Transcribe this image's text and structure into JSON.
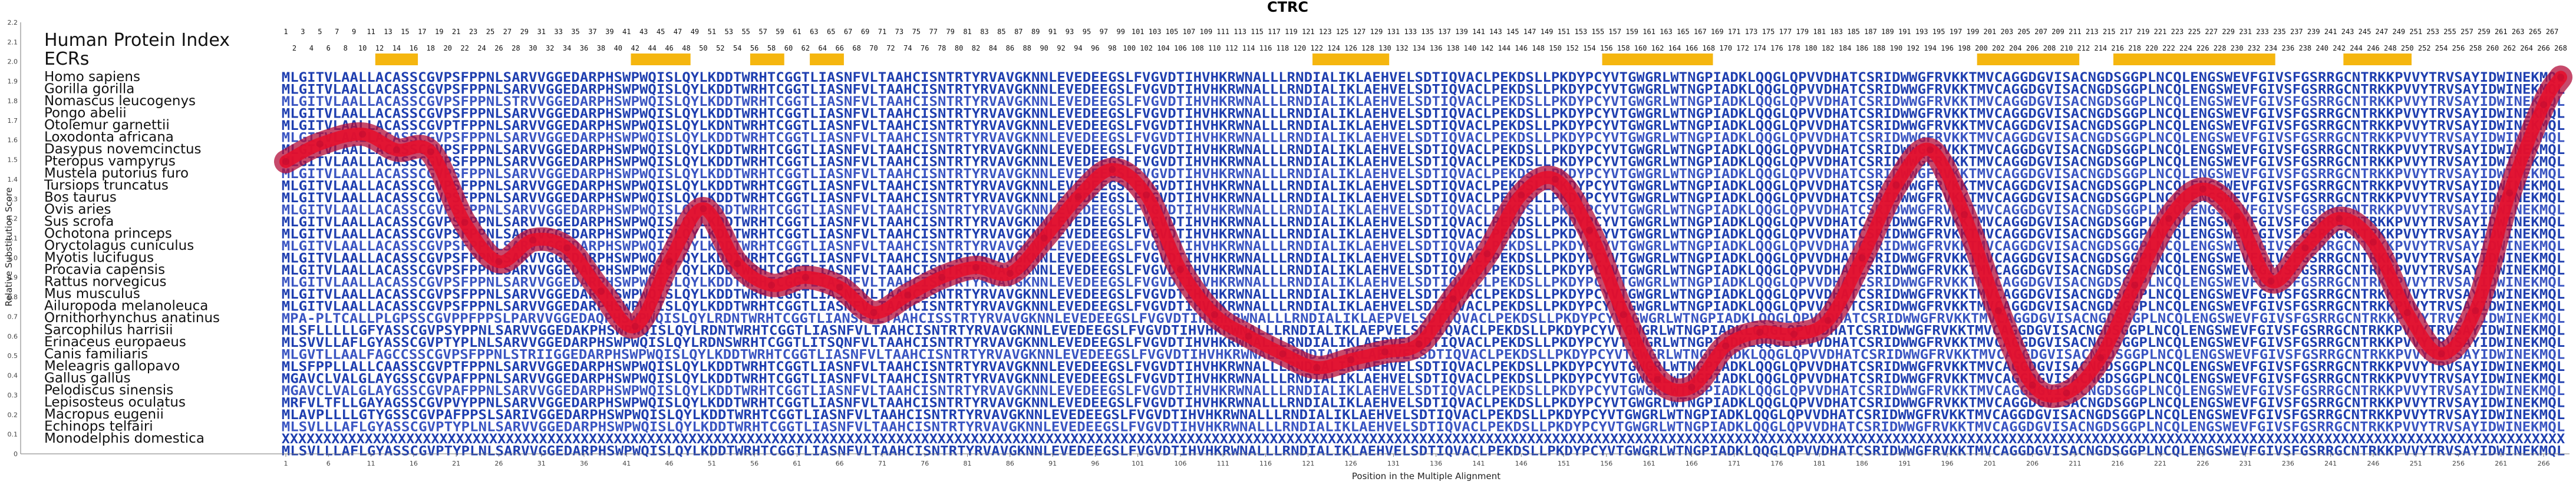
{
  "chart_data": {
    "type": "line",
    "title": "CTRC",
    "xlabel": "Position in the Multiple Alignment",
    "ylabel": "Relative Substitution Score",
    "ylim": [
      0,
      2.2
    ],
    "yticks": [
      "0",
      "0.1",
      "0.2",
      "0.3",
      "0.4",
      "0.5",
      "0.6",
      "0.7",
      "0.8",
      "0.9",
      "1.0",
      "1.1",
      "1.2",
      "1.3",
      "1.4",
      "1.5",
      "1.6",
      "1.7",
      "1.8",
      "1.9",
      "2.0",
      "2.1",
      "2.2"
    ],
    "xrange": [
      1,
      268
    ],
    "xticks": [
      1,
      6,
      11,
      16,
      21,
      26,
      31,
      36,
      41,
      46,
      51,
      56,
      61,
      66,
      71,
      76,
      81,
      86,
      91,
      96,
      101,
      106,
      111,
      116,
      121,
      126,
      131,
      136,
      141,
      146,
      151,
      156,
      161,
      166,
      171,
      176,
      181,
      186,
      191,
      196,
      201,
      206,
      211,
      216,
      221,
      226,
      231,
      236,
      241,
      246,
      251,
      256,
      261,
      266
    ],
    "header_rows": [
      "Human Protein Index",
      "ECRs"
    ],
    "ecr_regions": [
      [
        12,
        16
      ],
      [
        42,
        48
      ],
      [
        56,
        59
      ],
      [
        63,
        66
      ],
      [
        122,
        130
      ],
      [
        156,
        168
      ],
      [
        200,
        211
      ],
      [
        216,
        234
      ],
      [
        243,
        250
      ]
    ],
    "species": [
      "Homo sapiens",
      "Gorilla gorilla",
      "Nomascus leucogenys",
      "Pongo abelii",
      "Otolemur garnettii",
      "Loxodonta africana",
      "Dasypus novemcinctus",
      "Pteropus vampyrus",
      "Mustela putorius furo",
      "Tursiops truncatus",
      "Bos taurus",
      "Ovis aries",
      "Sus scrofa",
      "Ochotona princeps",
      "Oryctolagus cuniculus",
      "Myotis lucifugus",
      "Procavia capensis",
      "Rattus norvegicus",
      "Mus musculus",
      "Ailuropoda melanoleuca",
      "Ornithorhynchus anatinus",
      "Sarcophilus harrisii",
      "Erinaceus europaeus",
      "Canis familiaris",
      "Meleagris gallopavo",
      "Gallus gallus",
      "Pelodiscus sinensis",
      "Lepisosteus oculatus",
      "Macropus eugenii",
      "Echinops telfairi",
      "Monodelphis domestica"
    ],
    "sequences": [
      "MLGITVLAALLACASSCGVPSFPPNLSARVVGGEDARPHSWPWQISLQYLKDDTWRHTCGGTLIASNFVLTAAHCISNTRTYRVAVGKNNLEVEDEEGSLFVGVDTIHVHKRWNALLLRNDIALIKLAEHVELSDTIQVACLPEKDSLLPKDYPCYVTGWGRLWTNGPIADKLQQGLQPVVDHATCSRIDWWGFRVKKTMVCAGGDGVISACNGDSGGPLNCQLENGSWEVFGIVSFGSRRGCNTRKKPVVYTRVSAYIDWINEKMQL",
      "MLGITVLAALLACASSCGVPSFPPNLSARVVGGEDARPHSWPWQISLQYLKDDTWRHTCGGTLIASNFVLTAAHCISNTRTYRVAVGKNNLEVEDEEGSLFVGVDTIHVHKRWNALLLRNDIALIKLAEHVELSDTIQVACLPEKDSLLPKDYPCYVTGWGRLWTNGPIADKLQQGLQPVVDHATCSRIDWWGFRVKKTMVCAGGDGVISACNGDSGGPLNCQLENGSWEVFGIVSFGSRRGCNTRKKPVVYTRVSAYIDWINEKMQL",
      "MLGITVLAALLACASSCGVPSFPPNLSTRVVGGEDARPHSWPWQISLQYLKDDTWRHTCGGTLIASNFVLTAAHCISNTRTYRVAVGKNNLEVEDEEGSLFVGVDTIHVHKRWNALLLRNDIALIKLAEHVELSDTIQVACLPEKDSLLPKDYPCYVTGWGRLWTNGPIADKLQQGLQPVVDHATCSRIDWWGFRVKKTMVCAGGDGVISACNGDSGGPLNCQLENGSWEVFGIVSFGSRRGCNTRKKPVVYTRVSAYIDWINEKMQL",
      "MLGITVLAALLACASSCGVPSFPPNLSARVVGGEDARPHSWPWQISLQYLKDDTWRHTCGGTLIASNFVLTAAHCISNTRTYRVAVGKNNLEVEDEEGSLFVGVDTIHVHKRWNALLLRNDIALIKLAEHVELSDTIQVACLPEKDSLLPKDYPCYVTGWGRLWTNGPIADKLQQGLQPVVDHATCSRIDWWGFRVKKTMVCAGGDGVISACNGDSGGPLNCQLENGSWEVFGIVSFGSRRGCNTRKKPVVYTRVSAYIDWINEKMQL",
      "MLGITVLAALLACASSCGVPTFPPNLSARVVGGEDARPHSWPWQISLQYLKDNTWRHTCGGTLIASNFVLTAAHCISNTRTYRVAVGKNNLEVEDEEGSLFVGVDTIHVHKRWNALLLRNDIALIKLAEHVELSDTIQVACLPEKDSLLPKDYPCYVTGWGRLWTNGPIADKLQQGLQPVVDHATCSRIDWWGFRVKKTMVCAGGDGVISACNGDSGGPLNCQLENGSWEVFGIVSFGSRRGCNTRKKPVVYTRVSAYIDWINEKMQL",
      "MLGITVLAALLACASSCGVPSFPPNLSARVVGGEDARPHSWPWQISLQYLKDDTWRHTCGGTLIASNFVLTAAHCISNTRTYRVAVGKNNLEVEDEEGSLFVGVDTIHVHKRWNALLLRNDIALIKLAEHVELSDTIQVACLPEKDSLLPKDYPCYVTGWGRLWTNGPIADKLQQGLQPVVDHATCSRIDWWGFRVKKTMVCAGGDGVISACNGDSGGPLNCQLENGSWEVFGIVSFGSRRGCNTRKKPVVYTRVSAYIDWINEKMQL",
      "MLGITVLAALLACASSCGVPSFPPNLSARVVGGEDARPHSWPWQISLQYLKDDTWRHTCGGTLIASNFVLTAAHCISNTRTYRVAVGKNNLEVEDEEGSLFVGVDTIHVHKRWNALLLRNDIALIKLAEHVELSDTIQVACLPEKDSLLPKDYPCYVTGWGRLWTNGPIADKLQQGLQPVVDHATCSRIDWWGFRVKKTMVCAGGDGVISACNGDSGGPLNCQLENGSWEVFGIVSFGSRRGCNTRKKPVVYTRVSAYIDWINEKMQL",
      "MLGITVLAALLACASSCGVPSFPPNLSARVVGGEDARPHSWPWQISLQYLKDDTWRHTCGGTLIASNFVLTAAHCISNTRTYRVAVGKNNLEVEDEEGSLFVGVDTIHVHKRWNALLLRNDIALIKLAEHVELSDTIQVACLPEKDSLLPKDYPCYVTGWGRLWTNGPIADKLQQGLQPVVDHATCSRIDWWGFRVKKTMVCAGGDGVISACNGDSGGPLNCQLENGSWEVFGIVSFGSRRGCNTRKKPVVYTRVSAYIDWINEKMQL",
      "MLGITVLAALLACASSCGVPSFPPNLSARVVGGEDARPHSWPWQISLQYLKDDTWRHTCGGTLIASNFVLTAAHCISNTRTYRVAVGKNNLEVEDEEGSLFVGVDTIHVHKRWNALLLRNDIALIKLAEHVELSDTIQVACLPEKDSLLPKDYPCYVTGWGRLWTNGPIADKLQQGLQPVVDHATCSRIDWWGFRVKKTMVCAGGDGVISACNGDSGGPLNCQLENGSWEVFGIVSFGSRRGCNTRKKPVVYTRVSAYIDWINEKMQL",
      "MLGITVLAALLACASSCGVPSFPPNLSARVVGGEDARPHSWPWQISLQYLKDDTWRHTCGGTLIASNFVLTAAHCISNTRTYRVAVGKNNLEVEDEEGSLFVGVDTIHVHKRWNALLLRNDIALIKLAEHVELSDTIQVACLPEKDSLLPKDYPCYVTGWGRLWTNGPIADKLQQGLQPVVDHATCSRIDWWGFRVKKTMVCAGGDGVISACNGDSGGPLNCQLENGSWEVFGIVSFGSRRGCNTRKKPVVYTRVSAYIDWINEKMQL",
      "MLGITVLAALLACASSCGVPSFPPNLSARVVGGEDARPHSWPWQISLQYLKDDTWRHTCGGTLIASNFVLTAAHCISNTRTYRVAVGKNNLEVEDEEGSLFVGVDTIHVHKRWNALLLRNDIALIKLAEHVELSDTIQVACLPEKDSLLPKDYPCYVTGWGRLWTNGPIADKLQQGLQPVVDHATCSRIDWWGFRVKKTMVCAGGDGVISACNGDSGGPLNCQLENGSWEVFGIVSFGSRRGCNTRKKPVVYTRVSAYIDWINEKMQL",
      "MLGITVLAALLACASSCGVPSFPPNLSARVVGGEDARPHSWPWQISLQYLKDDTWRHTCGGTLIASNFVLTAAHCISNTRTYRVAVGKNNLEVEDEEGSLFVGVDTIHVHKRWNALLLRNDIALIKLAEHVELSDTIQVACLPEKDSLLPKDYPCYVTGWGRLWTNGPIADKLQQGLQPVVDHATCSRIDWWGFRVKKTMVCAGGDGVISACNGDSGGPLNCQLENGSWEVFGIVSFGSRRGCNTRKKPVVYTRVSAYIDWINEKMQL",
      "MLGITVLAALLACASSCGVPSFPPNLSARVVGGEDARPHSWPWQISLQYLKDDTWRHTCGGTLIASNFVLTAAHCISNTRTYRVAVGKNNLEVEDEEGSLFVGVDTIHVHKRWNALLLRNDIALIKLAEHVELSDTIQVACLPEKDSLLPKDYPCYVTGWGRLWTNGPIADKLQQGLQPVVDHATCSRIDWWGFRVKKTMVCAGGDGVISACNGDSGGPLNCQLENGSWEVFGIVSFGSRRGCNTRKKPVVYTRVSAYIDWINEKMQL",
      "MLGITVLAALLACASSCGVPSFPPNLSARVVGGEDARPHSWPWQISLQYLKDDTWRHTCGGTLIASNFVLTAAHCISNTRTYRVAVGKNNLEVEDEEGSLFVGVDTIHVHKRWNALLLRNDIALIKLAEHVELSDTIQVACLPEKDSLLPKDYPCYVTGWGRLWTNGPIADKLQQGLQPVVDHATCSRIDWWGFRVKKTMVCAGGDGVISACNGDSGGPLNCQLENGSWEVFGIVSFGSRRGCNTRKKPVVYTRVSAYIDWINEKMQL",
      "MLGITVLAALLACASSCGVPSFPPNLSARVVGGEDARPHSWPWQISLQYLKDDTWRHTCGGTLIASNFVLTAAHCISNTRTYRVAVGKNNLEVEDEEGSLFVGVDTIHVHKRWNALLLRNDIALIKLAEHVELSDTIQVACLPEKDSLLPKDYPCYVTGWGRLWTNGPIADKLQQGLQPVVDHATCSRIDWWGFRVKKTMVCAGGDGVISACNGDSGGPLNCQLENGSWEVFGIVSFGSRRGCNTRKKPVVYTRVSAYIDWINEKMQL",
      "MLGITVLAALLACASSCGVPSFPPNLSARVVGGEDARPHSWPWQISLQYLKDDTWRHTCGGTLIASNFVLTAAHCISNTRTYRVAVGKNNLEVEDEEGSLFVGVDTIHVHKRWNALLLRNDIALIKLAEHVELSDTIQVACLPEKDSLLPKDYPCYVTGWGRLWTNGPIADKLQQGLQPVVDHATCSRIDWWGFRVKKTMVCAGGDGVISACNGDSGGPLNCQLENGSWEVFGIVSFGSRRGCNTRKKPVVYTRVSAYIDWINEKMQL",
      "MLGITVLAALLACASSCGVPSFPPNLSARVVGGEDARPHSWPWQISLQYLKDDTWRHTCGGTLIASNFVLTAAHCISNTRTYRVAVGKNNLEVEDEEGSLFVGVDTIHVHKRWNALLLRNDIALIKLAEHVELSDTIQVACLPEKDSLLPKDYPCYVTGWGRLWTNGPIADKLQQGLQPVVDHATCSRIDWWGFRVKKTMVCAGGDGVISACNGDSGGPLNCQLENGSWEVFGIVSFGSRRGCNTRKKPVVYTRVSAYIDWINEKMQL",
      "MLGITVLAALLACASSCGVPSFPPNLSARVVGGEDARPHSWPWQISLQYLKDDTWRHTCGGTLIASNFVLTAAHCISNTRTYRVAVGKNNLEVEDEEGSLFVGVDTIHVHKRWNALLLRNDIALIKLAEHVELSDTIQVACLPEKDSLLPKDYPCYVTGWGRLWTNGPIADKLQQGLQPVVDHATCSRIDWWGFRVKKTMVCAGGDGVISACNGDSGGPLNCQLENGSWEVFGIVSFGSRRGCNTRKKPVVYTRVSAYIDWINEKMQL",
      "MLGITVLAALLACASSCGVPSFPPNLSARVVGGEDARPHSWPWQISLQYLKDDTWRHTCGGTLIASNFVLTAAHCISNTRTYRVAVGKNNLEVEDEEGSLFVGVDTIHVHKRWNALLLRNDIALIKLAEHVELSDTIQVACLPEKDSLLPKDYPCYVTGWGRLWTNGPIADKLQQGLQPVVDHATCSRIDWWGFRVKKTMVCAGGDGVISACNGDSGGPLNCQLENGSWEVFGIVSFGSRRGCNTRKKPVVYTRVSAYIDWINEKMQL",
      "MLGITVLAALLACASSCGVPSFPPNLSARVVGGEDARPHSWPWQISLQYLKDDTWRHTCGGTLIASNFVLTAAHCISNTRTYRVAVGKNNLEVEDEEGSLFVGVDTIHVHKRWNALLLRNDIALIKLAEHVELSDTIQVACLPEKDSLLPKDYPCYVTGWGRLWTNGPIADKLQQGLQPVVDHATCSRIDWWGFRVKKTMVCAGGDGVISACNGDSGGPLNCQLENGSWEVFGIVSFGSRRGCNTRKKPVVYTRVSAYIDWINEKMQL",
      "MPA-PLTCALLPLGPSSCGVPPFPPSLPARVVGGEDAQPHSWPWQISLQYLRDNTWRHTCGGTLIANSFVLTAAHCISSTRTYRVAVGKNNLEVEDEEGSLFVGVDTIHVHKRWNALLLRNDIALIKLAEPVELSDTIQVACLPEKDSLLPKDYPCYVTGWGRLWTNGPIADKLQQGLQPVVDHATCSRIDWWGFRVKKTMVCAGGDGVISACNGDSGGPLNCQLENGSWEVFGIVSFGSRRGCNTRKKPVVYTRVSAYIDWINEKMQL",
      "MLSFLLLLLGFYASSCGVPSYPPNLSARVVGGEDAKPHSWPWQISLQYLRDNTWRHTCGGTLIASNFVLTAAHCISNTRTYRVAVGKNNLEVEDEEGSLFVGVDTIHVHKRWNALLLRNDIALIKLAEPVELSDTIQVACLPEKDSLLPKDYPCYVTGWGRLWTNGPIADKLQQGLQPVVDHATCSRIDWWGFRVKKTMVCAGGDGVISACNGDSGGPLNCQLENGSWEVFGIVSFGSRRGCNTRKKPVVYTRVSAYIDWINEKMQL",
      "MLSVVLLAFLGYASSCGVPTYPLNLSARVVGGEDARPHSWPWQISLQYLRDNSWRHTCGGTLITSQNFVLTAAHCISNTRTYRVAVGKNNLEVEDEEGSLFVGVDTIHVHKRWNALLLRNDIALIKLAEPVELSDTIQVACLPEKDSLLPKDYPCYVTGWGRLWTNGPIADKLQQGLQPVVDHATCSRIDWWGFRVKKTMVCAGGDGVISACNGDSGGPLNCQLENGSWEVFGIVSFGSRRGCNTRKKPVVYTRVSAYIDWINEKMQL",
      "MLGVTLLAALFAGCCSSCGVPSFPPNLSTRIIGGEDARPHSWPWQISLQYLKDDTWRHTCGGTLIASNFVLTAAHCISNTRTYRVAVGKNNLEVEDEEGSLFVGVDTIHVHKRWNALLLRNDIALIKLAEHVELSDTIQVACLPEKDSLLPKDYPCYVTGWGRLWTNGPIADKLQQGLQPVVDHATCSRIDWWGFRVKKTMVCAGGDGVISACNGDSGGPLNCQLENGSWEVFGIVSFGSRRGCNTRKKPVVYTRVSAYIDWINEKMQL",
      "MLSFPPLLALLCAASSCGVPTFPPNLSARVVGGEDARPHSWPWQISLQYLKDDTWRHTCGGTLIASNFVLTAAHCISNTRTYRVAVGKNNLEVEDEEGSLFVGVDTIHVHKRWNALLLRNDIALIKLAEHVELSDTIQVACLPEKDSLLPKDYPCYVTGWGRLWTNGPIADKLQQGLQPVVDHATCSRIDWWGFRVKKTMVCAGGDGVISACNGDSGGPLNCQLENGSWEVFGIVSFGSRRGCNTRKKPVVYTRVSAYIDWINEKMQL",
      "MGAVCLVALGLAYGSSCGVPAFPPNLSARVVGGEDARPHSWPWQISLQYLKDDTWRHTCGGTLIASNFVLTAAHCISNTRTYRVAVGKNNLEVEDEEGSLFVGVDTIHVHKRWNALLLRNDIALIKLAEHVELSDTIQVACLPEKDSLLPKDYPCYVTGWGRLWTNGPIADKLQQGLQPVVDHATCSRIDWWGFRVKKTMVCAGGDGVISACNGDSGGPLNCQLENGSWEVFGIVSFGSRRGCNTRKKPVVYTRVSAYIDWINEKMQL",
      "MGAVCLVALGLAYGSSCGVPAFPPNLSARVVGGEDARPHSWPWQISLQYLKDDTWRHTCGGTLIASNFVLTAAHCISNTRTYRVAVGKNNLEVEDEEGSLFVGVDTIHVHKRWNALLLRNDIALIKLAEHVELSDTIQVACLPEKDSLLPKDYPCYVTGWGRLWTNGPIADKLQQGLQPVVDHATCSRIDWWGFRVKKTMVCAGGDGVISACNGDSGGPLNCQLENGSWEVFGIVSFGSRRGCNTRKKPVVYTRVSAYIDWINEKMQL",
      "MRFVLTFLLGAYAGSSCGVPVYPPNLSARVVGGEDARPHSWPWQISLQYLKDDTWRHTCGGTLIASNFVLTAAHCISNTRTYRVAVGKNNLEVEDEEGSLFVGVDTIHVHKRWNALLLRNDIALIKLAEHVELSDTIQVACLPEKDSLLPKDYPCYVTGWGRLWTNGPIADKLQQGLQPVVDHATCSRIDWWGFRVKKTMVCAGGDGVISACNGDSGGPLNCQLENGSWEVFGIVSFGSRRGCNTRKKPVVYTRVSAYIDWINEKMQL",
      "MLAVPLLLLGTYGSSCGVPAFPPSLSARIVGGEDARPHSWPWQISLQYLKDDTWRHTCGGTLIASNFVLTAAHCISNTRTYRVAVGKNNLEVEDEEGSLFVGVDTIHVHKRWNALLLRNDIALIKLAEHVELSDTIQVACLPEKDSLLPKDYPCYVTGWGRLWTNGPIADKLQQGLQPVVDHATCSRIDWWGFRVKKTMVCAGGDGVISACNGDSGGPLNCQLENGSWEVFGIVSFGSRRGCNTRKKPVVYTRVSAYIDWINEKMQL",
      "MLSVLLLAFLGYASSCGVPTYPLNLSARVVGGEDARPHSWPWQISLQYLKDDTWRHTCGGTLIASNFVLTAAHCISNTRTYRVAVGKNNLEVEDEEGSLFVGVDTIHVHKRWNALLLRNDIALIKLAEHVELSDTIQVACLPEKDSLLPKDYPCYVTGWGRLWTNGPIADKLQQGLQPVVDHATCSRIDWWGFRVKKTMVCAGGDGVISACNGDSGGPLNCQLENGSWEVFGIVSFGSRRGCNTRKKPVVYTRVSAYIDWINEKMQL",
      "XXXXXXXXXXXXXXXXXXXXXXXXXXXXXXXXXXXXXXXXXXXXXXXXXXXXXXXXXXXXXXXXXXXXXXXXXXXXXXXXXXXXXXXXXXXXXXXXXXXXXXXXXXXXXXXXXXXXXXXXXXXXXXXXXXXXXXXXXXXXXXXXXXXXXXXXXXXXXXXXXXXXXXXXXXXXXXXXXXXXXXXXXXXXXXXXXXXXXXXXXXXXXXXXXXXXXXXXXXXXXXXXXXXXXXXXXXXXXXXXXXXXXXXXXXXXXXXXXXXXXXXXXXXXXXXXXXX",
      "MLSVLLLAFLGYASSCGVPTYPLNLSARVVGGEDARPHSWPWQISLQYLKDDTWRHTCGGTLIASNFVLTAAHCISNTRTYRVAVGKNNLEVEDEEGSLFVGVDTIHVHKRWNALLLRNDIALIKLAEHVELSDTIQVACLPEKDSLLPKDYPCYVTGWGRLWTNGPIADKLQQGLQPVVDHATCSRIDWWGFRVKKTMVCAGGDGVISACNGDSGGPLNCQLENGSWEVFGIVSFGSRRGCNTRKKPVVYTRVSAYIDWINEKMQL"
    ],
    "series": [
      {
        "x": [
          1,
          5,
          10,
          14,
          18,
          22,
          26,
          30,
          34,
          38,
          42,
          46,
          50,
          54,
          58,
          62,
          66,
          70,
          74,
          78,
          82,
          86,
          90,
          94,
          98,
          102,
          106,
          110,
          114,
          118,
          122,
          126,
          130,
          134,
          138,
          142,
          146,
          150,
          154,
          158,
          162,
          166,
          170,
          174,
          178,
          182,
          186,
          190,
          194,
          198,
          202,
          206,
          210,
          214,
          218,
          222,
          226,
          230,
          234,
          238,
          242,
          246,
          250,
          254,
          258,
          262,
          266,
          268
        ],
        "y": [
          1.49,
          1.58,
          1.63,
          1.55,
          1.54,
          1.18,
          0.98,
          1.09,
          1.05,
          0.83,
          0.65,
          0.98,
          1.25,
          0.97,
          0.86,
          0.9,
          0.85,
          0.72,
          0.81,
          0.9,
          0.95,
          0.92,
          1.1,
          1.31,
          1.45,
          1.32,
          0.94,
          0.71,
          0.6,
          0.51,
          0.44,
          0.48,
          0.52,
          0.56,
          0.79,
          1.02,
          1.32,
          1.4,
          1.14,
          0.71,
          0.38,
          0.34,
          0.55,
          0.62,
          0.61,
          0.68,
          1.0,
          1.37,
          1.55,
          1.22,
          0.73,
          0.35,
          0.31,
          0.49,
          0.86,
          1.2,
          1.35,
          1.21,
          0.88,
          1.05,
          1.2,
          1.08,
          0.72,
          0.51,
          0.73,
          1.33,
          1.78,
          1.92
        ]
      }
    ]
  }
}
